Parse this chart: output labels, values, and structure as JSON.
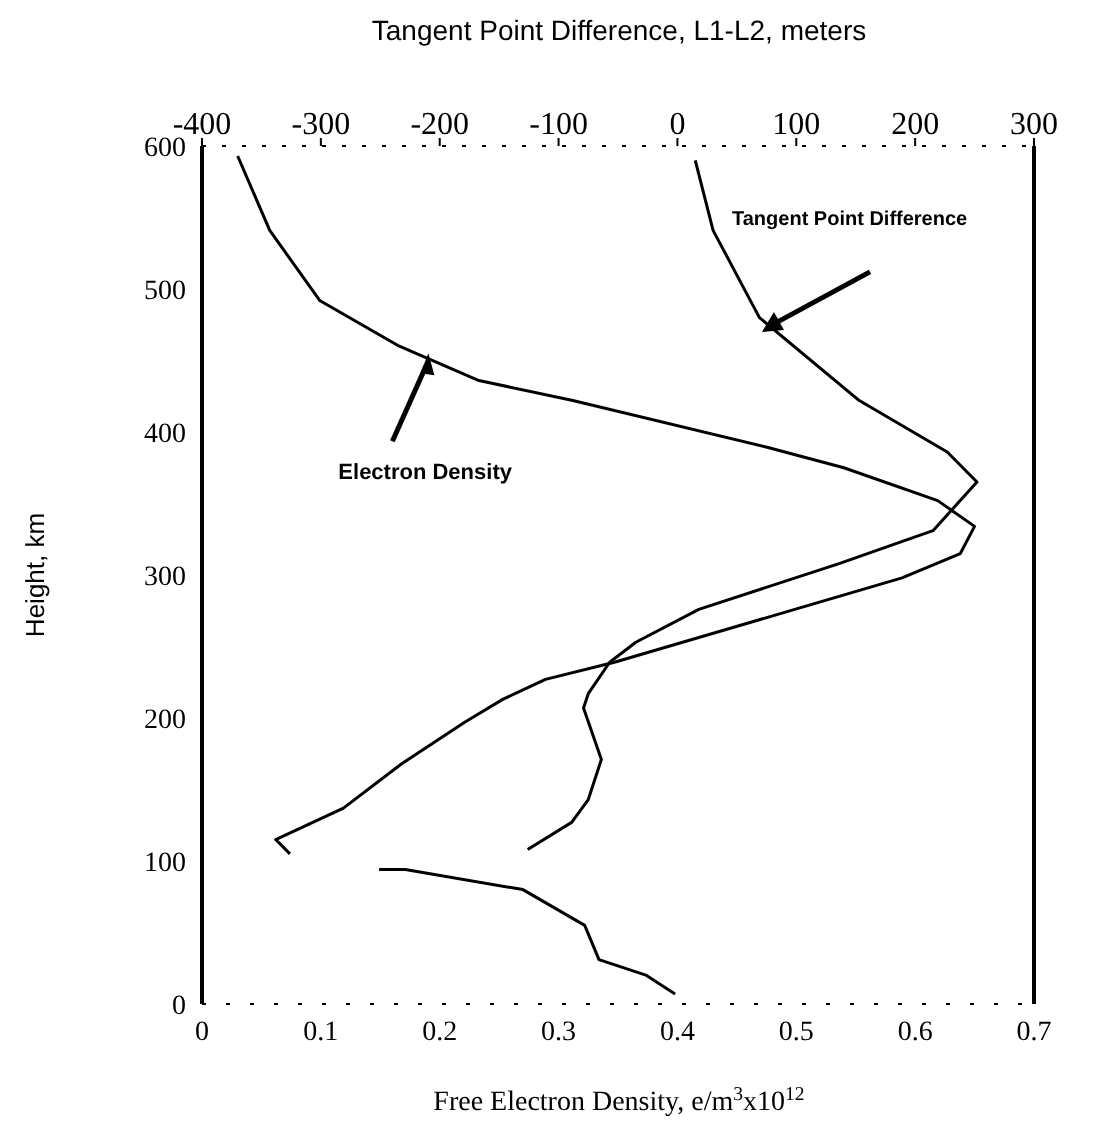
{
  "chart_data": {
    "type": "line",
    "title": "Tangent Point Difference, L1-L2, meters",
    "xlabel": "Free Electron Density, e/m$^{3}$x10$^{12}$",
    "ylabel": "Height, km",
    "xlim": [
      0,
      0.7
    ],
    "xticks": [
      0,
      0.1,
      0.2,
      0.3,
      0.4,
      0.5,
      0.6,
      0.7
    ],
    "x2lim": [
      -400,
      300
    ],
    "x2ticks": [
      -400,
      -300,
      -200,
      -100,
      0,
      100,
      200,
      300
    ],
    "ylim": [
      0,
      600
    ],
    "yticks": [
      0,
      100,
      200,
      300,
      400,
      500,
      600
    ],
    "marker": "none",
    "line_style": "solid",
    "annotations": [
      {
        "text": "Electron Density",
        "x": 0.19,
        "y": 455
      },
      "Tangent Point Difference"
    ],
    "series": [
      {
        "color": "#000000",
        "x": [
          0.03,
          0.057,
          0.099,
          0.166,
          0.233,
          0.312,
          0.477,
          0.54,
          0.619,
          0.65,
          0.638,
          0.589,
          0.347,
          0.289,
          0.253,
          0.221,
          0.168,
          0.119,
          0.062,
          0.074,
          null,
          0.149,
          0.171,
          0.27,
          0.322,
          0.334,
          0.374,
          0.398
        ],
        "values": [
          593,
          541,
          492,
          460,
          436,
          422,
          389,
          375,
          352,
          334,
          315,
          298,
          239,
          227,
          213,
          197,
          168,
          137,
          115,
          105,
          null,
          94,
          94,
          80,
          55,
          31,
          20,
          7
        ]
      },
      {
        "color": "#000000",
        "axis": "x2",
        "x": [
          15,
          30,
          69,
          153,
          227,
          252,
          215,
          136,
          18,
          -35,
          -57,
          -75,
          -79,
          -64,
          -75,
          -89,
          -126
        ],
        "values": [
          590,
          541,
          480,
          422,
          386,
          365,
          331,
          308,
          276,
          253,
          239,
          217,
          207,
          171,
          143,
          127,
          108
        ]
      }
    ]
  }
}
